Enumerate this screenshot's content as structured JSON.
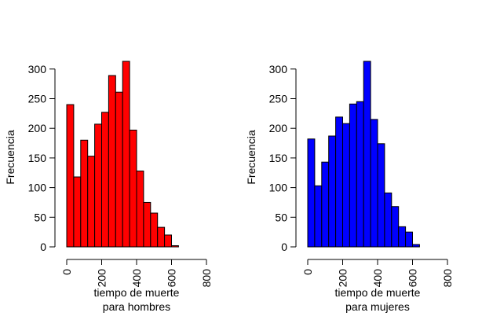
{
  "chart_data": [
    {
      "type": "histogram",
      "color": "#ff0000",
      "bin_edges": [
        0,
        40,
        80,
        120,
        160,
        200,
        240,
        280,
        320,
        360,
        400,
        440,
        480,
        520,
        560,
        600,
        640,
        680,
        720,
        760,
        800
      ],
      "values": [
        240,
        118,
        180,
        153,
        207,
        227,
        289,
        261,
        313,
        197,
        128,
        75,
        57,
        33,
        20,
        2,
        0,
        0,
        0,
        0
      ],
      "xlabel": "tiempo de muerte\npara hombres",
      "ylabel": "Frecuencia",
      "xticks": [
        0,
        200,
        400,
        600,
        800
      ],
      "yticks": [
        0,
        50,
        100,
        150,
        200,
        250,
        300
      ],
      "ylim": [
        0,
        313
      ],
      "xlim": [
        0,
        800
      ]
    },
    {
      "type": "histogram",
      "color": "#0000ff",
      "bin_edges": [
        0,
        40,
        80,
        120,
        160,
        200,
        240,
        280,
        320,
        360,
        400,
        440,
        480,
        520,
        560,
        600,
        640,
        680,
        720,
        760,
        800
      ],
      "values": [
        182,
        103,
        143,
        187,
        219,
        208,
        241,
        245,
        313,
        215,
        174,
        91,
        68,
        34,
        25,
        4,
        0,
        0,
        0,
        0
      ],
      "xlabel": "tiempo de muerte\npara mujeres",
      "ylabel": "Frecuencia",
      "xticks": [
        0,
        200,
        400,
        600,
        800
      ],
      "yticks": [
        0,
        50,
        100,
        150,
        200,
        250,
        300
      ],
      "ylim": [
        0,
        313
      ],
      "xlim": [
        0,
        800
      ]
    }
  ]
}
